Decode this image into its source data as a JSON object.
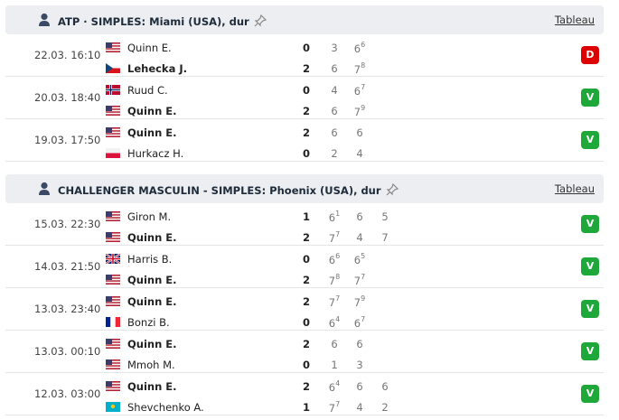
{
  "sections": [
    {
      "title": "ATP · SIMPLES: Miami (USA), dur",
      "link": "Tableau",
      "matches": [
        {
          "date": "22.03. 16:10",
          "result": "D",
          "players": [
            {
              "name": "Quinn E.",
              "total": 0,
              "sets": [
                {
                  "games": 3
                },
                {
                  "games": 6,
                  "tb": 6
                }
              ]
            },
            {
              "name": "Lehecka J.",
              "total": 2,
              "sets": [
                {
                  "games": 6
                },
                {
                  "games": 7,
                  "tb": 8
                }
              ]
            }
          ]
        },
        {
          "date": "20.03. 18:40",
          "result": "V",
          "players": [
            {
              "name": "Ruud C.",
              "total": 0,
              "sets": [
                {
                  "games": 4
                },
                {
                  "games": 6,
                  "tb": 7
                }
              ]
            },
            {
              "name": "Quinn E.",
              "total": 2,
              "sets": [
                {
                  "games": 6
                },
                {
                  "games": 7,
                  "tb": 9
                }
              ]
            }
          ]
        },
        {
          "date": "19.03. 17:50",
          "result": "V",
          "players": [
            {
              "name": "Quinn E.",
              "total": 2,
              "sets": [
                {
                  "games": 6
                },
                {
                  "games": 6
                }
              ]
            },
            {
              "name": "Hurkacz H.",
              "total": 0,
              "sets": [
                {
                  "games": 2
                },
                {
                  "games": 4
                }
              ]
            }
          ]
        }
      ]
    },
    {
      "title": "CHALLENGER MASCULIN - SIMPLES: Phoenix (USA), dur",
      "link": "Tableau",
      "matches": [
        {
          "date": "15.03. 22:30",
          "result": "V",
          "players": [
            {
              "name": "Giron M.",
              "total": 1,
              "sets": [
                {
                  "games": 6,
                  "tb": 1
                },
                {
                  "games": 6
                },
                {
                  "games": 5
                }
              ]
            },
            {
              "name": "Quinn E.",
              "total": 2,
              "sets": [
                {
                  "games": 7,
                  "tb": 7
                },
                {
                  "games": 4
                },
                {
                  "games": 7
                }
              ]
            }
          ]
        },
        {
          "date": "14.03. 21:50",
          "result": "V",
          "players": [
            {
              "name": "Harris B.",
              "total": 0,
              "sets": [
                {
                  "games": 6,
                  "tb": 6
                },
                {
                  "games": 6,
                  "tb": 5
                }
              ]
            },
            {
              "name": "Quinn E.",
              "total": 2,
              "sets": [
                {
                  "games": 7,
                  "tb": 8
                },
                {
                  "games": 7,
                  "tb": 7
                }
              ]
            }
          ]
        },
        {
          "date": "13.03. 23:40",
          "result": "V",
          "players": [
            {
              "name": "Quinn E.",
              "total": 2,
              "sets": [
                {
                  "games": 7,
                  "tb": 7
                },
                {
                  "games": 7,
                  "tb": 9
                }
              ]
            },
            {
              "name": "Bonzi B.",
              "total": 0,
              "sets": [
                {
                  "games": 6,
                  "tb": 4
                },
                {
                  "games": 6,
                  "tb": 7
                }
              ]
            }
          ]
        },
        {
          "date": "13.03. 00:10",
          "result": "V",
          "players": [
            {
              "name": "Quinn E.",
              "total": 2,
              "sets": [
                {
                  "games": 6
                },
                {
                  "games": 6
                }
              ]
            },
            {
              "name": "Mmoh M.",
              "total": 0,
              "sets": [
                {
                  "games": 1
                },
                {
                  "games": 3
                }
              ]
            }
          ]
        },
        {
          "date": "12.03. 03:00",
          "result": "V",
          "players": [
            {
              "name": "Quinn E.",
              "total": 2,
              "sets": [
                {
                  "games": 6,
                  "tb": 4
                },
                {
                  "games": 6
                },
                {
                  "games": 6
                }
              ]
            },
            {
              "name": "Shevchenko A.",
              "total": 1,
              "sets": [
                {
                  "games": 7,
                  "tb": 7
                },
                {
                  "games": 4
                },
                {
                  "games": 2
                }
              ]
            }
          ]
        }
      ]
    }
  ]
}
